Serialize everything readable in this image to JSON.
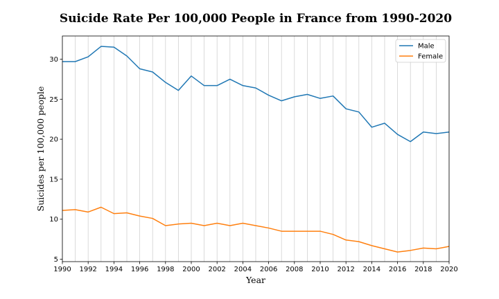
{
  "chart_data": {
    "type": "line",
    "title": "Suicide Rate Per 100,000 People in France from 1990-2020",
    "xlabel": "Year",
    "ylabel": "Suicides per 100,000 people",
    "xlim": [
      1990,
      2020
    ],
    "ylim": [
      4.7,
      32.9
    ],
    "xticks": [
      1990,
      1992,
      1994,
      1996,
      1998,
      2000,
      2002,
      2004,
      2006,
      2008,
      2010,
      2012,
      2014,
      2016,
      2018,
      2020
    ],
    "yticks": [
      5,
      10,
      15,
      20,
      25,
      30
    ],
    "grid": "vertical at every year",
    "legend": "top-right",
    "x": [
      1990,
      1991,
      1992,
      1993,
      1994,
      1995,
      1996,
      1997,
      1998,
      1999,
      2000,
      2001,
      2002,
      2003,
      2004,
      2005,
      2006,
      2007,
      2008,
      2009,
      2010,
      2011,
      2012,
      2013,
      2014,
      2015,
      2016,
      2017,
      2018,
      2019,
      2020
    ],
    "series": [
      {
        "name": "Male",
        "color": "#1f77b4",
        "values": [
          29.7,
          29.7,
          30.3,
          31.6,
          31.5,
          30.4,
          28.8,
          28.4,
          27.1,
          26.1,
          27.9,
          26.7,
          26.7,
          27.5,
          26.7,
          26.4,
          25.5,
          24.8,
          25.3,
          25.6,
          25.1,
          25.4,
          23.8,
          23.4,
          21.5,
          22.0,
          20.6,
          19.7,
          20.9,
          20.7,
          20.9
        ]
      },
      {
        "name": "Female",
        "color": "#ff7f0e",
        "values": [
          11.1,
          11.2,
          10.9,
          11.5,
          10.7,
          10.8,
          10.4,
          10.1,
          9.2,
          9.4,
          9.5,
          9.2,
          9.5,
          9.2,
          9.5,
          9.2,
          8.9,
          8.5,
          8.5,
          8.5,
          8.5,
          8.1,
          7.4,
          7.2,
          6.7,
          6.3,
          5.9,
          6.1,
          6.4,
          6.3,
          6.6
        ]
      }
    ]
  }
}
